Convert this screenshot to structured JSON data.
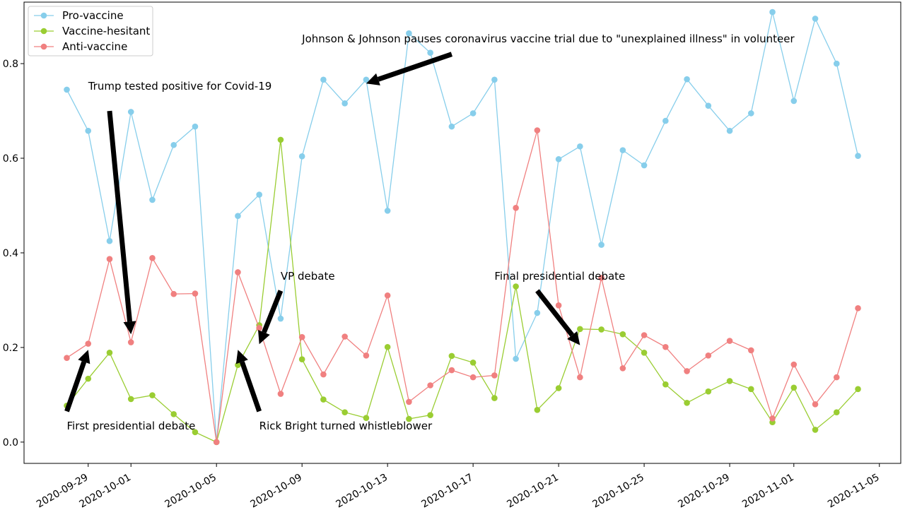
{
  "chart_data": {
    "type": "line",
    "title": "",
    "xlabel": "",
    "ylabel": "",
    "x_start": "2020-09-28",
    "x": [
      "2020-09-28",
      "2020-09-29",
      "2020-09-30",
      "2020-10-01",
      "2020-10-02",
      "2020-10-03",
      "2020-10-04",
      "2020-10-05",
      "2020-10-06",
      "2020-10-07",
      "2020-10-08",
      "2020-10-09",
      "2020-10-10",
      "2020-10-11",
      "2020-10-12",
      "2020-10-13",
      "2020-10-14",
      "2020-10-15",
      "2020-10-16",
      "2020-10-17",
      "2020-10-18",
      "2020-10-19",
      "2020-10-20",
      "2020-10-21",
      "2020-10-22",
      "2020-10-23",
      "2020-10-24",
      "2020-10-25",
      "2020-10-26",
      "2020-10-27",
      "2020-10-28",
      "2020-10-29",
      "2020-10-30",
      "2020-10-31",
      "2020-11-01",
      "2020-11-02",
      "2020-11-03",
      "2020-11-04"
    ],
    "xlim": [
      "2020-09-26",
      "2020-11-06"
    ],
    "ylim": [
      -0.045,
      0.93
    ],
    "x_ticks": [
      "2020-09-29",
      "2020-10-01",
      "2020-10-05",
      "2020-10-09",
      "2020-10-13",
      "2020-10-17",
      "2020-10-21",
      "2020-10-25",
      "2020-10-29",
      "2020-11-01",
      "2020-11-05"
    ],
    "y_ticks": [
      "0.0",
      "0.2",
      "0.4",
      "0.6",
      "0.8"
    ],
    "grid": false,
    "legend_position": "top-left",
    "series": [
      {
        "name": "Pro-vaccine",
        "color": "#87ceeb",
        "values": [
          0.745,
          0.658,
          0.425,
          0.698,
          0.512,
          0.628,
          0.667,
          0.0,
          0.478,
          0.523,
          0.261,
          0.604,
          0.766,
          0.716,
          0.766,
          0.489,
          0.864,
          0.823,
          0.667,
          0.695,
          0.766,
          0.176,
          0.273,
          0.598,
          0.625,
          0.417,
          0.617,
          0.585,
          0.679,
          0.767,
          0.711,
          0.658,
          0.695,
          0.909,
          0.721,
          0.895,
          0.8,
          0.605
        ]
      },
      {
        "name": "Vaccine-hesitant",
        "color": "#9acd32",
        "values": [
          0.077,
          0.134,
          0.189,
          0.091,
          0.099,
          0.059,
          0.021,
          0.0,
          0.163,
          0.247,
          0.639,
          0.175,
          0.09,
          0.063,
          0.051,
          0.201,
          0.049,
          0.057,
          0.182,
          0.168,
          0.093,
          0.329,
          0.068,
          0.114,
          0.239,
          0.238,
          0.228,
          0.189,
          0.122,
          0.083,
          0.107,
          0.129,
          0.112,
          0.042,
          0.115,
          0.026,
          0.063,
          0.112
        ]
      },
      {
        "name": "Anti-vaccine",
        "color": "#f08080",
        "values": [
          0.178,
          0.208,
          0.387,
          0.211,
          0.389,
          0.313,
          0.314,
          0.0,
          0.359,
          0.241,
          0.102,
          0.222,
          0.143,
          0.223,
          0.183,
          0.31,
          0.085,
          0.12,
          0.152,
          0.137,
          0.141,
          0.495,
          0.659,
          0.289,
          0.137,
          0.347,
          0.156,
          0.226,
          0.201,
          0.15,
          0.183,
          0.214,
          0.194,
          0.05,
          0.164,
          0.08,
          0.137,
          0.283
        ]
      }
    ],
    "annotations": [
      {
        "text": "Johnson & Johnson pauses coronavirus vaccine trial due to \"unexplained illness\" in volunteer",
        "target_x": "2020-10-12",
        "target_y": 0.758,
        "text_x": "2020-10-09",
        "text_y": 0.845,
        "tail_x": "2020-10-16",
        "tail_y": 0.82
      },
      {
        "text": "Trump tested positive for Covid-19",
        "target_x": "2020-10-01",
        "target_y": 0.228,
        "text_x": "2020-09-29",
        "text_y": 0.745,
        "tail_x": "2020-09-30",
        "tail_y": 0.7
      },
      {
        "text": "VP debate",
        "target_x": "2020-10-07",
        "target_y": 0.207,
        "text_x": "2020-10-08",
        "text_y": 0.343,
        "tail_x": "2020-10-08",
        "tail_y": 0.32
      },
      {
        "text": "Final presidential debate",
        "target_x": "2020-10-22",
        "target_y": 0.205,
        "text_x": "2020-10-18",
        "text_y": 0.343,
        "tail_x": "2020-10-20",
        "tail_y": 0.32
      },
      {
        "text": "First presidential debate",
        "target_x": "2020-09-29",
        "target_y": 0.195,
        "text_x": "2020-09-28",
        "text_y": 0.027,
        "tail_x": "2020-09-28",
        "tail_y": 0.065
      },
      {
        "text": "Rick Bright turned whistleblower",
        "target_x": "2020-10-06",
        "target_y": 0.195,
        "text_x": "2020-10-07",
        "text_y": 0.027,
        "tail_x": "2020-10-07",
        "tail_y": 0.065
      }
    ]
  }
}
